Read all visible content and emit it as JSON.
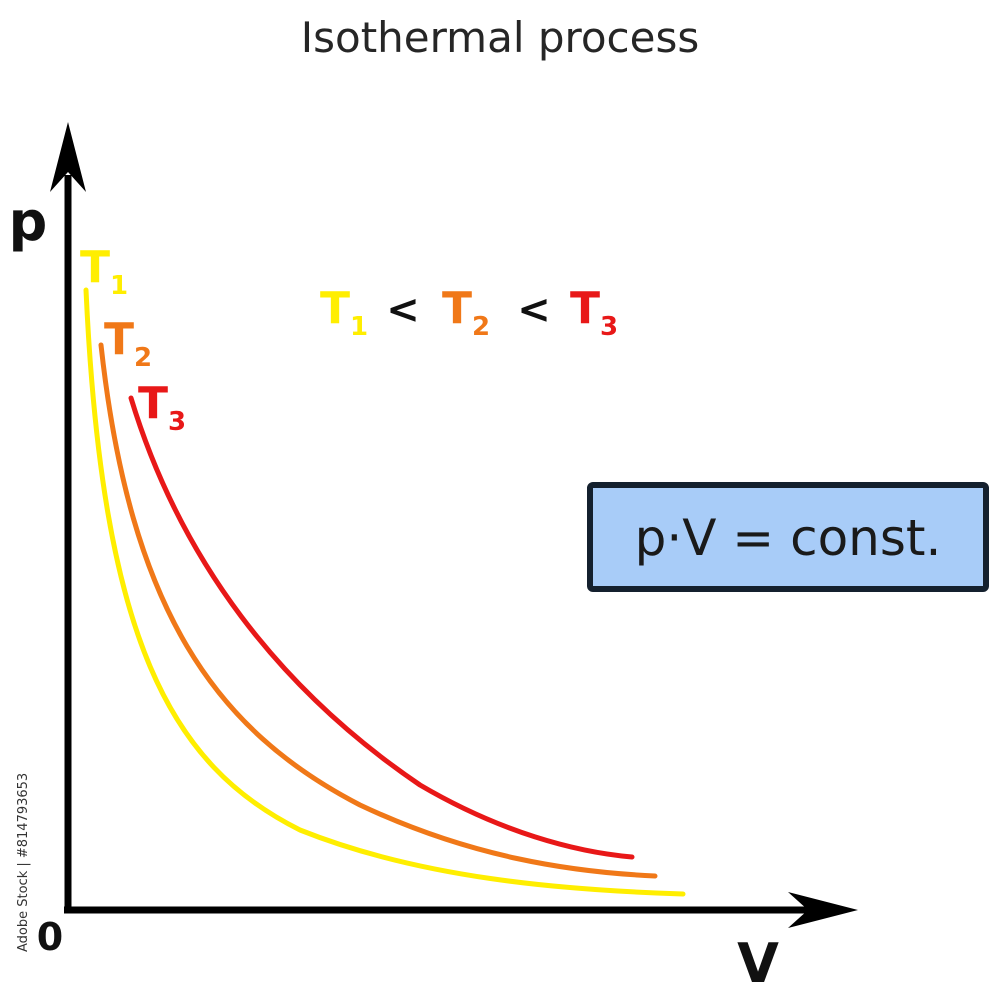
{
  "title": "Isothermal process",
  "axes": {
    "y_label": "p",
    "x_label": "V",
    "origin_label": "0"
  },
  "curves": [
    {
      "name": "T",
      "subscript": "1",
      "color": "#ffee00"
    },
    {
      "name": "T",
      "subscript": "2",
      "color": "#f07818"
    },
    {
      "name": "T",
      "subscript": "3",
      "color": "#e81818"
    }
  ],
  "relation": {
    "terms": [
      {
        "name": "T",
        "subscript": "1",
        "color": "#ffee00"
      },
      {
        "name": "T",
        "subscript": "2",
        "color": "#f07818"
      },
      {
        "name": "T",
        "subscript": "3",
        "color": "#e81818"
      }
    ],
    "operator": "<"
  },
  "equation": {
    "text": "p·V = const.",
    "background": "#a8ccf8",
    "border": "#14202e"
  },
  "watermark": "Adobe Stock | #814793653"
}
